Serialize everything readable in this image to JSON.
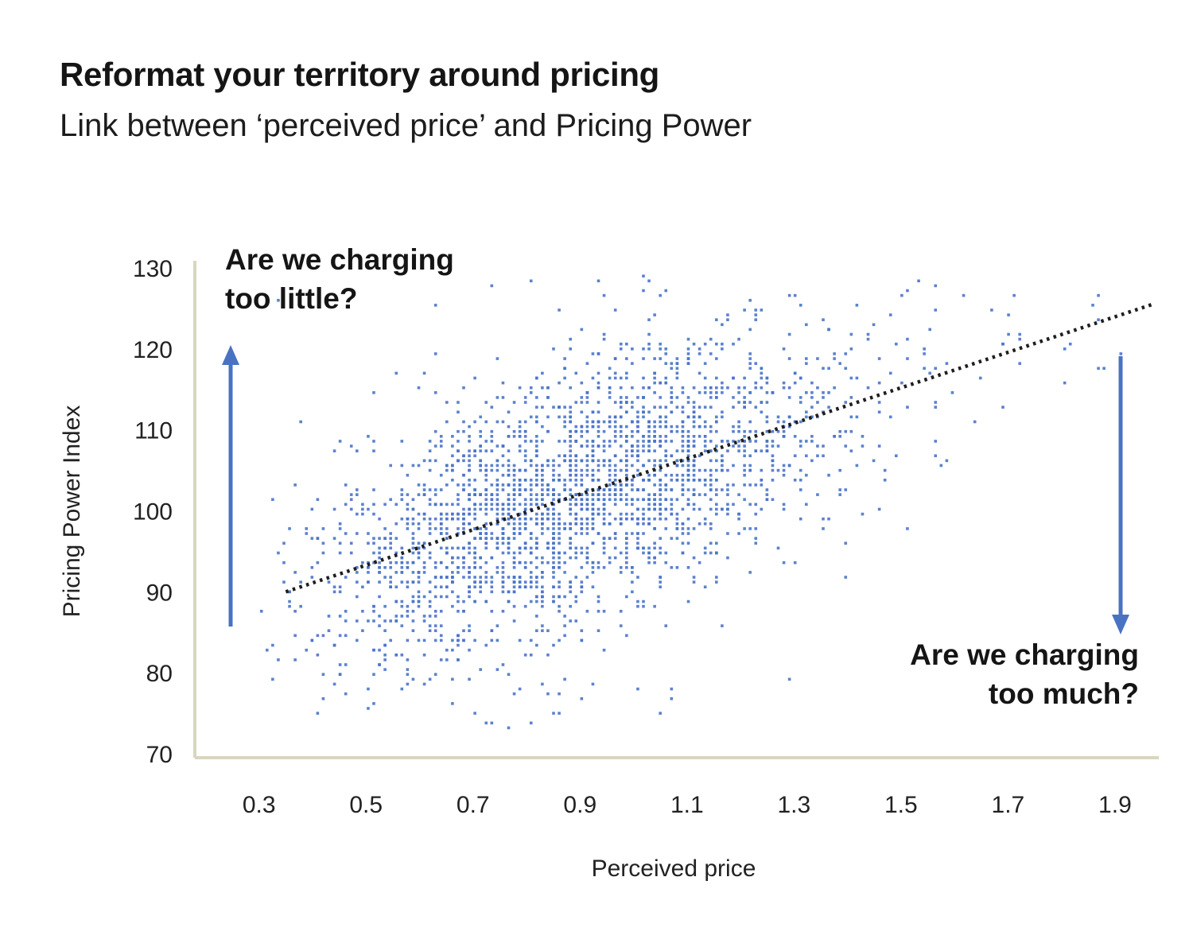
{
  "header": {
    "title": "Reformat your territory around pricing",
    "subtitle": "Link between ‘perceived price’ and Pricing Power"
  },
  "chart_data": {
    "type": "scatter",
    "title": "Reformat your territory around pricing",
    "subtitle": "Link between ‘perceived price’ and Pricing Power",
    "xlabel": "Perceived price",
    "ylabel": "Pricing Power Index",
    "xlim": [
      0.18,
      1.97
    ],
    "ylim": [
      70,
      130
    ],
    "x_ticks": [
      0.3,
      0.5,
      0.7,
      0.9,
      1.1,
      1.3,
      1.5,
      1.7,
      1.9
    ],
    "x_tick_labels": [
      "0.3",
      "0.5",
      "0.7",
      "0.9",
      "1.1",
      "1.3",
      "1.5",
      "1.7",
      "1.9"
    ],
    "y_ticks": [
      70,
      80,
      90,
      100,
      110,
      120,
      130
    ],
    "y_tick_labels": [
      "70",
      "80",
      "90",
      "100",
      "110",
      "120",
      "130"
    ],
    "grid": false,
    "legend": "none",
    "trendline": {
      "style": "dotted",
      "points": [
        [
          0.35,
          90.0
        ],
        [
          1.97,
          125.5
        ]
      ]
    },
    "scatter_generator": {
      "seed": 42,
      "n_points_estimate": 2600,
      "main": {
        "count": 2500,
        "x_mean": 0.88,
        "x_sd": 0.24,
        "intercept": 82.3,
        "slope": 22,
        "noise_sd": 7.5
      },
      "x_quantize": 0.0105,
      "y_quantize": 0.6,
      "clip": {
        "x": [
          0.3,
          1.96
        ],
        "y": [
          72.8,
          129.3
        ]
      },
      "extras": [
        {
          "kind": "right_tail",
          "count": 45,
          "x_min": 1.38,
          "x_max": 1.92,
          "noise_sd": 7
        },
        {
          "kind": "high_outliers",
          "count": 30,
          "x_mean": 0.95,
          "x_sd": 0.25,
          "y_min": 114,
          "y_max": 129
        },
        {
          "kind": "low_outliers",
          "count": 22,
          "x_mean": 0.8,
          "x_sd": 0.22,
          "y_min": 73,
          "y_max": 80
        }
      ]
    },
    "annotations": [
      {
        "id": "too-little",
        "text": "Are we charging too little?",
        "arrow": "up",
        "position": "top-left"
      },
      {
        "id": "too-much",
        "text": "Are we charging too much?",
        "arrow": "down",
        "position": "bottom-right"
      }
    ],
    "colors": {
      "point": "#4a74c8",
      "arrow": "#4a72c2",
      "trend": "#1e1e1e",
      "axis": "#d8d6bf",
      "text": "#1a1a1a"
    }
  }
}
